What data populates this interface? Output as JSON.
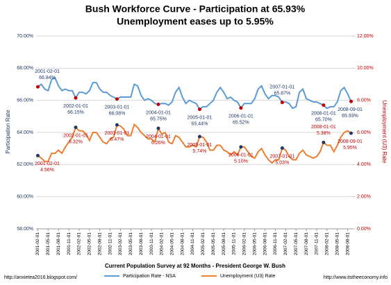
{
  "chart_data": {
    "type": "line",
    "title": "Bush Workforce Curve - Participation at 65.93%",
    "subtitle": "Unemployment eases up to 5.95%",
    "x_label": "Current Population Survey at 92 Months - President George W. Bush",
    "y_label": "Participation Rate",
    "y2_label": "Unemployment (U3) Rate",
    "footer_left": "http://anxietea2016.blogspot.com/",
    "footer_right": "http://www.itstheeconomy.info",
    "grid": true,
    "legend": "bottom",
    "categories": [
      "2001-02-01",
      null,
      null,
      "2001-05-01",
      null,
      null,
      "2001-08-01",
      null,
      null,
      "2001-11-01",
      null,
      null,
      "2002-02-01",
      null,
      null,
      "2002-05-01",
      null,
      null,
      "2002-08-01",
      null,
      null,
      "2002-11-01",
      null,
      null,
      "2003-02-01",
      null,
      null,
      "2003-05-01",
      null,
      null,
      "2003-08-01",
      null,
      null,
      "2003-11-01",
      null,
      null,
      "2004-02-01",
      null,
      null,
      "2004-05-01",
      null,
      null,
      "2004-08-01",
      null,
      null,
      "2004-11-01",
      null,
      null,
      "2005-02-01",
      null,
      null,
      "2005-05-01",
      null,
      null,
      "2005-08-01",
      null,
      null,
      "2005-11-01",
      null,
      null,
      "2006-02-01",
      null,
      null,
      "2006-05-01",
      null,
      null,
      "2006-08-01",
      null,
      null,
      "2006-11-01",
      null,
      null,
      "2007-02-01",
      null,
      null,
      "2007-05-01",
      null,
      null,
      "2007-08-01",
      null,
      null,
      "2007-11-01",
      null,
      null,
      "2008-02-01",
      null,
      null,
      "2008-05-01",
      null,
      null,
      "2008-08-01",
      null
    ],
    "ylim": [
      58,
      70
    ],
    "yticks": [
      {
        "value": 58,
        "label": "58.00%"
      },
      {
        "value": 60,
        "label": "60.00%"
      },
      {
        "value": 62,
        "label": "62.00%"
      },
      {
        "value": 64,
        "label": "64.00%"
      },
      {
        "value": 66,
        "label": "66.00%"
      },
      {
        "value": 68,
        "label": "68.00%"
      },
      {
        "value": 70,
        "label": "70.00%"
      }
    ],
    "y2lim": [
      0,
      12
    ],
    "y2ticks": [
      {
        "value": 0,
        "label": "0.00%"
      },
      {
        "value": 2,
        "label": "2.00%"
      },
      {
        "value": 4,
        "label": "4.00%"
      },
      {
        "value": 6,
        "label": "6.00%"
      },
      {
        "value": 8,
        "label": "8.00%"
      },
      {
        "value": 10,
        "label": "10.00%"
      },
      {
        "value": 12,
        "label": "12.00%"
      }
    ],
    "series": [
      {
        "name": "Participation Rate - NSA",
        "color": "#5b9bd5",
        "label_color": "#1f3864",
        "dot_color": "#c00000",
        "values": [
          66.84,
          67.0,
          66.7,
          66.6,
          67.3,
          67.4,
          66.9,
          66.6,
          66.7,
          66.6,
          66.6,
          66.15,
          66.5,
          66.5,
          66.4,
          66.6,
          67.1,
          67.1,
          66.7,
          66.5,
          66.5,
          66.3,
          66.2,
          66.08,
          66.2,
          66.2,
          66.2,
          66.2,
          67.0,
          66.9,
          66.3,
          66.0,
          66.1,
          66.0,
          65.8,
          65.75,
          65.8,
          65.8,
          65.7,
          65.9,
          66.5,
          66.8,
          66.2,
          65.8,
          66.0,
          65.9,
          65.8,
          65.44,
          65.6,
          65.6,
          65.8,
          66.0,
          66.5,
          66.8,
          66.5,
          66.1,
          66.2,
          66.0,
          65.9,
          65.52,
          65.8,
          65.8,
          65.8,
          66.1,
          66.7,
          66.9,
          66.4,
          66.1,
          66.3,
          66.3,
          66.2,
          65.87,
          65.9,
          65.8,
          65.5,
          65.6,
          66.5,
          66.7,
          66.1,
          66.0,
          65.9,
          65.9,
          65.8,
          65.7,
          65.5,
          65.6,
          65.6,
          65.9,
          66.6,
          66.8,
          66.4,
          65.93
        ],
        "annotations": [
          {
            "date": "2001-02-01",
            "value": 66.84,
            "label": "66.84%"
          },
          {
            "date": "2002-01-01",
            "value": 66.15,
            "label": "66.15%"
          },
          {
            "date": "2003-01-01",
            "value": 66.08,
            "label": "66.08%"
          },
          {
            "date": "2004-01-01",
            "value": 65.75,
            "label": "65.75%"
          },
          {
            "date": "2005-01-01",
            "value": 65.44,
            "label": "65.44%"
          },
          {
            "date": "2006-01-01",
            "value": 65.52,
            "label": "65.52%"
          },
          {
            "date": "2007-01-01",
            "value": 65.87,
            "label": "65.87%"
          },
          {
            "date": "2008-01-01",
            "value": 65.7,
            "label": "65.70%"
          },
          {
            "date": "2008-09-01",
            "value": 65.93,
            "label": "65.93%"
          }
        ]
      },
      {
        "name": "Unemployment (U3) Rate",
        "color": "#ed7d31",
        "axis": "y2",
        "label_color": "#c00000",
        "dot_color": "#1f3864",
        "values": [
          4.56,
          4.4,
          4.2,
          4.2,
          4.7,
          4.7,
          4.9,
          4.7,
          5.1,
          5.4,
          5.7,
          6.32,
          6.1,
          6.1,
          5.9,
          5.5,
          6.0,
          6.0,
          5.7,
          5.4,
          5.3,
          5.6,
          5.7,
          6.47,
          6.4,
          6.2,
          5.8,
          5.8,
          6.5,
          6.3,
          6.0,
          5.8,
          5.6,
          5.6,
          5.4,
          6.26,
          5.9,
          6.0,
          5.4,
          5.3,
          5.8,
          5.7,
          5.4,
          5.1,
          5.1,
          5.2,
          5.1,
          5.74,
          5.7,
          5.4,
          4.9,
          4.9,
          5.2,
          5.2,
          4.9,
          4.8,
          4.6,
          4.8,
          4.6,
          5.1,
          5.1,
          4.8,
          4.5,
          4.4,
          4.8,
          5.0,
          4.6,
          4.3,
          4.1,
          4.3,
          4.3,
          5.03,
          4.9,
          4.5,
          4.3,
          4.3,
          4.7,
          4.9,
          4.6,
          4.5,
          4.4,
          4.5,
          4.8,
          5.38,
          5.2,
          5.2,
          4.8,
          5.2,
          5.7,
          6.0,
          6.1,
          5.95
        ],
        "annotations": [
          {
            "date": "2001-02-01",
            "value": 4.56,
            "label": "4.56%"
          },
          {
            "date": "2002-01-01",
            "value": 6.32,
            "label": "6.32%"
          },
          {
            "date": "2003-01-01",
            "value": 6.47,
            "label": "6.47%"
          },
          {
            "date": "2004-01-01",
            "value": 6.26,
            "label": "6.26%"
          },
          {
            "date": "2005-01-01",
            "value": 5.74,
            "label": "5.74%"
          },
          {
            "date": "2006-01-01",
            "value": 5.1,
            "label": "5.10%"
          },
          {
            "date": "2007-01-01",
            "value": 5.03,
            "label": "5.03%"
          },
          {
            "date": "2008-01-01",
            "value": 5.38,
            "label": "5.38%"
          },
          {
            "date": "2008-09-01",
            "value": 5.95,
            "label": "5.95%"
          }
        ]
      }
    ]
  }
}
